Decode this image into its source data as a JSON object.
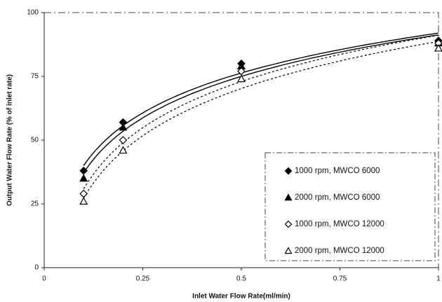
{
  "chart_data": {
    "type": "scatter",
    "x_label": "Inlet Water Flow Rate(ml/min)",
    "y_label": "Output Water Flow Rate (% of inlet rate)",
    "x": [
      0.1,
      0.2,
      0.5,
      1
    ],
    "series": [
      {
        "name": "1000 rpm, MWCO 6000",
        "color": "#000000",
        "marker": "diamond",
        "line_style": "solid",
        "values": [
          38,
          57,
          80,
          89
        ]
      },
      {
        "name": "2000 rpm, MWCO 6000",
        "color": "#000000",
        "marker": "triangle",
        "line_style": "solid",
        "values": [
          35,
          55,
          79,
          88
        ]
      },
      {
        "name": "1000 rpm, MWCO 12000",
        "color": "#000000",
        "marker": "diamond-open",
        "line_style": "dotted",
        "values": [
          29,
          50,
          77,
          88
        ]
      },
      {
        "name": "2000 rpm, MWCO 12000",
        "color": "#000000",
        "marker": "triangle-open",
        "line_style": "dotted",
        "values": [
          26,
          46,
          74,
          86
        ]
      }
    ],
    "trendline": "log",
    "xlim": [
      0,
      1
    ],
    "xticks": [
      0,
      0.25,
      0.5,
      0.75,
      1
    ],
    "ylim": [
      0,
      100
    ],
    "yticks": [
      0,
      25,
      50,
      75,
      100
    ],
    "legend": "lower right"
  }
}
